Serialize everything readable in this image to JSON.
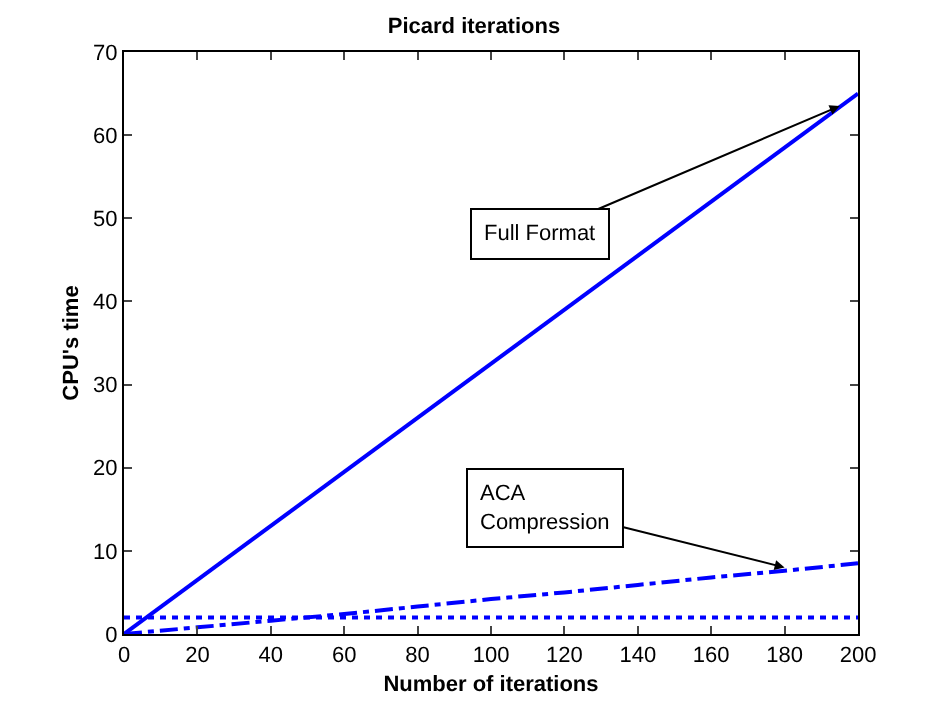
{
  "chart_data": {
    "type": "line",
    "title": "Picard iterations",
    "xlabel": "Number of iterations",
    "ylabel": "CPU's time",
    "x": [
      0,
      200
    ],
    "series": [
      {
        "color": "#0000ff",
        "values": [
          0,
          65
        ],
        "line_style": "solid"
      },
      {
        "color": "#0000ff",
        "x": [
          0,
          20,
          40,
          60,
          80,
          100,
          120,
          140,
          160,
          180,
          200
        ],
        "values": [
          0,
          0.8,
          1.6,
          2.4,
          3.3,
          4.2,
          5.0,
          5.9,
          6.8,
          7.6,
          8.5
        ],
        "line_style": "dashdot"
      },
      {
        "color": "#0000ff",
        "values": [
          2,
          2
        ],
        "line_style": "dotted"
      }
    ],
    "xlim": [
      0,
      200
    ],
    "xticks": [
      0,
      20,
      40,
      60,
      80,
      100,
      120,
      140,
      160,
      180,
      200
    ],
    "ylim": [
      0,
      70
    ],
    "yticks": [
      0,
      10,
      20,
      30,
      40,
      50,
      60,
      70
    ],
    "grid": false,
    "marker": "none",
    "annotations": [
      {
        "text": "Full Format",
        "x": 195,
        "y": 63.5
      },
      {
        "text": "ACA\nCompression",
        "x": 180,
        "y": 8
      }
    ]
  }
}
